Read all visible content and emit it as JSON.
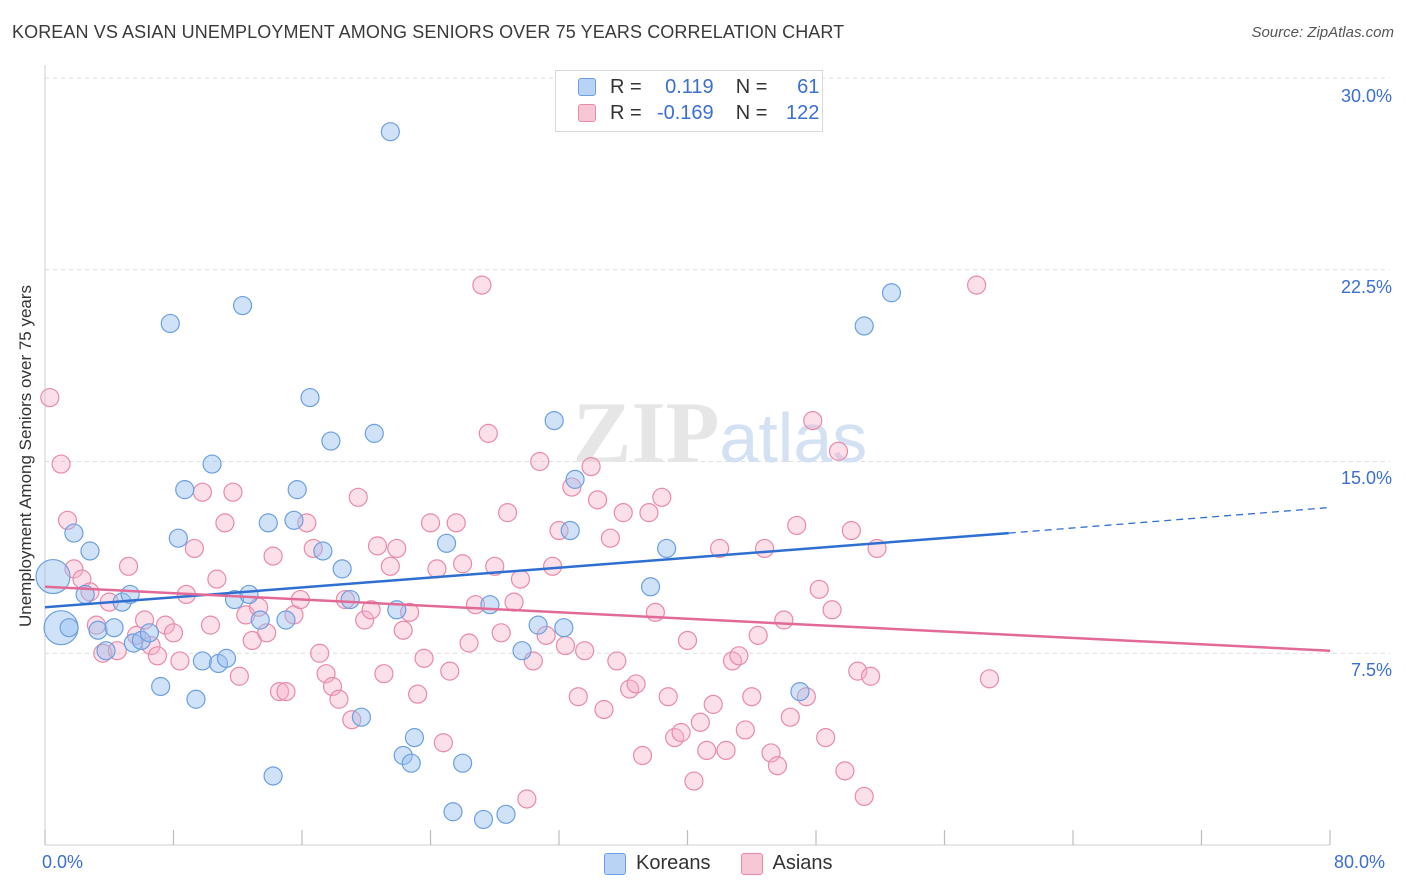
{
  "header": {
    "title": "KOREAN VS ASIAN UNEMPLOYMENT AMONG SENIORS OVER 75 YEARS CORRELATION CHART",
    "source": "Source: ZipAtlas.com"
  },
  "legend_box": {
    "rows": [
      {
        "r_label": "R =",
        "r_value": "0.119",
        "n_label": "N =",
        "n_value": "61",
        "color": "#6d9fe0"
      },
      {
        "r_label": "R =",
        "r_value": "-0.169",
        "n_label": "N =",
        "n_value": "122",
        "color": "#e98aab"
      }
    ]
  },
  "bottom_legend": {
    "koreans": "Koreans",
    "asians": "Asians"
  },
  "colors": {
    "koreans": "#6d9fe0",
    "asians": "#e98aab",
    "koreans_line": "#2f6fd0",
    "asians_line": "#e26a97",
    "tick_text": "#3b6fd1"
  },
  "chart_data": {
    "type": "scatter",
    "title": "KOREAN VS ASIAN UNEMPLOYMENT AMONG SENIORS OVER 75 YEARS CORRELATION CHART",
    "xlabel": "",
    "ylabel": "Unemployment Among Seniors over 75 years",
    "xlim": [
      0,
      80
    ],
    "ylim": [
      0,
      30
    ],
    "x_tick_labels": [
      "0.0%",
      "80.0%"
    ],
    "y_ticks": [
      7.5,
      15.0,
      22.5,
      30.0
    ],
    "y_tick_labels": [
      "7.5%",
      "15.0%",
      "22.5%",
      "30.0%"
    ],
    "grid": true,
    "watermark": "ZIPatlas",
    "series": [
      {
        "name": "Koreans",
        "r": 0.119,
        "n": 61,
        "trend": {
          "x0": 0,
          "y0": 9.3,
          "x1": 60,
          "y1": 12.2,
          "dashed_to_x": 80,
          "dashed_to_y": 13.2
        },
        "points": [
          [
            0.5,
            10.5,
            2
          ],
          [
            1.0,
            8.5,
            2
          ],
          [
            1.5,
            8.5,
            1
          ],
          [
            1.8,
            12.2,
            1
          ],
          [
            2.5,
            9.8,
            1
          ],
          [
            2.8,
            11.5,
            1
          ],
          [
            3.3,
            8.4,
            1
          ],
          [
            3.8,
            7.6,
            1
          ],
          [
            4.3,
            8.5,
            1
          ],
          [
            4.8,
            9.5,
            1
          ],
          [
            5.3,
            9.8,
            1
          ],
          [
            5.5,
            7.9,
            1
          ],
          [
            6.0,
            8.0,
            1
          ],
          [
            6.5,
            8.3,
            1
          ],
          [
            7.2,
            6.2,
            1
          ],
          [
            7.8,
            20.4,
            1
          ],
          [
            8.3,
            12.0,
            1
          ],
          [
            8.7,
            13.9,
            1
          ],
          [
            9.4,
            5.7,
            1
          ],
          [
            9.8,
            7.2,
            1
          ],
          [
            10.4,
            14.9,
            1
          ],
          [
            10.8,
            7.1,
            1
          ],
          [
            11.3,
            7.3,
            1
          ],
          [
            11.8,
            9.6,
            1
          ],
          [
            12.3,
            21.1,
            1
          ],
          [
            12.7,
            9.8,
            1
          ],
          [
            13.4,
            8.8,
            1
          ],
          [
            13.9,
            12.6,
            1
          ],
          [
            14.2,
            2.7,
            1
          ],
          [
            15.0,
            8.8,
            1
          ],
          [
            15.5,
            12.7,
            1
          ],
          [
            15.7,
            13.9,
            1
          ],
          [
            16.5,
            17.5,
            1
          ],
          [
            17.3,
            11.5,
            1
          ],
          [
            17.8,
            15.8,
            1
          ],
          [
            18.5,
            10.8,
            1
          ],
          [
            19.0,
            9.6,
            1
          ],
          [
            19.7,
            5.0,
            1
          ],
          [
            20.5,
            16.1,
            1
          ],
          [
            21.5,
            27.9,
            1
          ],
          [
            21.9,
            9.2,
            1
          ],
          [
            22.3,
            3.5,
            1
          ],
          [
            22.8,
            3.2,
            1
          ],
          [
            23.0,
            4.2,
            1
          ],
          [
            25.0,
            11.8,
            1
          ],
          [
            25.4,
            1.3,
            1
          ],
          [
            26.0,
            3.2,
            1
          ],
          [
            27.3,
            1.0,
            1
          ],
          [
            27.7,
            9.4,
            1
          ],
          [
            28.7,
            1.2,
            1
          ],
          [
            29.7,
            7.6,
            1
          ],
          [
            30.7,
            8.6,
            1
          ],
          [
            31.7,
            16.6,
            1
          ],
          [
            32.3,
            8.5,
            1
          ],
          [
            32.7,
            12.3,
            1
          ],
          [
            33.0,
            14.3,
            1
          ],
          [
            37.7,
            10.1,
            1
          ],
          [
            38.7,
            11.6,
            1
          ],
          [
            47.0,
            6.0,
            1
          ],
          [
            51.0,
            20.3,
            1
          ],
          [
            52.7,
            21.6,
            1
          ]
        ]
      },
      {
        "name": "Asians",
        "r": -0.169,
        "n": 122,
        "trend": {
          "x0": 0,
          "y0": 10.1,
          "x1": 80,
          "y1": 7.6
        },
        "points": [
          [
            0.3,
            17.5,
            1
          ],
          [
            1.0,
            14.9,
            1
          ],
          [
            1.4,
            12.7,
            1
          ],
          [
            1.8,
            10.8,
            1
          ],
          [
            2.3,
            10.4,
            1
          ],
          [
            2.8,
            9.9,
            1
          ],
          [
            3.2,
            8.6,
            1
          ],
          [
            3.6,
            7.5,
            1
          ],
          [
            4.0,
            9.5,
            1
          ],
          [
            4.5,
            7.6,
            1
          ],
          [
            5.2,
            10.9,
            1
          ],
          [
            5.7,
            8.2,
            1
          ],
          [
            6.2,
            8.8,
            1
          ],
          [
            6.6,
            7.8,
            1
          ],
          [
            7.0,
            7.4,
            1
          ],
          [
            7.5,
            8.6,
            1
          ],
          [
            8.0,
            8.3,
            1
          ],
          [
            8.4,
            7.2,
            1
          ],
          [
            8.8,
            9.8,
            1
          ],
          [
            9.3,
            11.6,
            1
          ],
          [
            9.8,
            13.8,
            1
          ],
          [
            10.3,
            8.6,
            1
          ],
          [
            10.7,
            10.4,
            1
          ],
          [
            11.2,
            12.6,
            1
          ],
          [
            11.7,
            13.8,
            1
          ],
          [
            12.1,
            6.6,
            1
          ],
          [
            12.5,
            9.0,
            1
          ],
          [
            12.9,
            8.0,
            1
          ],
          [
            13.3,
            9.3,
            1
          ],
          [
            13.8,
            8.3,
            1
          ],
          [
            14.2,
            11.3,
            1
          ],
          [
            14.6,
            6.0,
            1
          ],
          [
            15.0,
            6.0,
            1
          ],
          [
            15.5,
            9.0,
            1
          ],
          [
            15.9,
            9.6,
            1
          ],
          [
            16.3,
            12.6,
            1
          ],
          [
            16.7,
            11.6,
            1
          ],
          [
            17.1,
            7.5,
            1
          ],
          [
            17.5,
            6.7,
            1
          ],
          [
            17.9,
            6.2,
            1
          ],
          [
            18.3,
            5.7,
            1
          ],
          [
            18.7,
            9.6,
            1
          ],
          [
            19.1,
            4.9,
            1
          ],
          [
            19.5,
            13.6,
            1
          ],
          [
            19.9,
            8.8,
            1
          ],
          [
            20.3,
            9.2,
            1
          ],
          [
            20.7,
            11.7,
            1
          ],
          [
            21.1,
            6.7,
            1
          ],
          [
            21.5,
            10.9,
            1
          ],
          [
            21.9,
            11.6,
            1
          ],
          [
            22.3,
            8.4,
            1
          ],
          [
            22.7,
            9.1,
            1
          ],
          [
            23.2,
            5.9,
            1
          ],
          [
            23.6,
            7.3,
            1
          ],
          [
            24.0,
            12.6,
            1
          ],
          [
            24.4,
            10.8,
            1
          ],
          [
            24.8,
            4.0,
            1
          ],
          [
            25.2,
            6.8,
            1
          ],
          [
            25.6,
            12.6,
            1
          ],
          [
            26.0,
            11.0,
            1
          ],
          [
            26.4,
            7.9,
            1
          ],
          [
            26.8,
            9.4,
            1
          ],
          [
            27.2,
            21.9,
            1
          ],
          [
            27.6,
            16.1,
            1
          ],
          [
            28.0,
            10.9,
            1
          ],
          [
            28.4,
            8.3,
            1
          ],
          [
            28.8,
            13.0,
            1
          ],
          [
            29.2,
            9.5,
            1
          ],
          [
            29.6,
            10.4,
            1
          ],
          [
            30.0,
            1.8,
            1
          ],
          [
            30.4,
            7.2,
            1
          ],
          [
            30.8,
            15.0,
            1
          ],
          [
            31.2,
            8.2,
            1
          ],
          [
            31.6,
            10.9,
            1
          ],
          [
            32.0,
            12.3,
            1
          ],
          [
            32.4,
            7.8,
            1
          ],
          [
            32.8,
            14.0,
            1
          ],
          [
            33.2,
            5.8,
            1
          ],
          [
            33.6,
            7.6,
            1
          ],
          [
            34.0,
            14.8,
            1
          ],
          [
            34.4,
            13.5,
            1
          ],
          [
            34.8,
            5.3,
            1
          ],
          [
            35.2,
            12.0,
            1
          ],
          [
            35.6,
            7.2,
            1
          ],
          [
            36.0,
            13.0,
            1
          ],
          [
            36.4,
            6.1,
            1
          ],
          [
            36.8,
            6.3,
            1
          ],
          [
            37.2,
            3.5,
            1
          ],
          [
            37.6,
            13.0,
            1
          ],
          [
            38.0,
            9.1,
            1
          ],
          [
            38.4,
            13.6,
            1
          ],
          [
            38.8,
            5.8,
            1
          ],
          [
            39.2,
            4.2,
            1
          ],
          [
            39.6,
            4.4,
            1
          ],
          [
            40.0,
            8.0,
            1
          ],
          [
            40.4,
            2.5,
            1
          ],
          [
            40.8,
            4.8,
            1
          ],
          [
            41.2,
            3.7,
            1
          ],
          [
            41.6,
            5.5,
            1
          ],
          [
            42.0,
            11.6,
            1
          ],
          [
            42.4,
            3.7,
            1
          ],
          [
            42.8,
            7.2,
            1
          ],
          [
            43.2,
            7.4,
            1
          ],
          [
            43.6,
            4.5,
            1
          ],
          [
            44.0,
            5.8,
            1
          ],
          [
            44.4,
            8.2,
            1
          ],
          [
            44.8,
            11.6,
            1
          ],
          [
            45.2,
            3.6,
            1
          ],
          [
            45.6,
            3.1,
            1
          ],
          [
            46.0,
            8.8,
            1
          ],
          [
            46.4,
            5.0,
            1
          ],
          [
            46.8,
            12.5,
            1
          ],
          [
            47.4,
            5.8,
            1
          ],
          [
            47.8,
            16.6,
            1
          ],
          [
            48.2,
            10.0,
            1
          ],
          [
            48.6,
            4.2,
            1
          ],
          [
            49.0,
            9.2,
            1
          ],
          [
            49.4,
            15.4,
            1
          ],
          [
            49.8,
            2.9,
            1
          ],
          [
            50.2,
            12.3,
            1
          ],
          [
            50.6,
            6.8,
            1
          ],
          [
            51.0,
            1.9,
            1
          ],
          [
            51.4,
            6.6,
            1
          ],
          [
            51.8,
            11.6,
            1
          ],
          [
            58.0,
            21.9,
            1
          ],
          [
            58.8,
            6.5,
            1
          ]
        ]
      }
    ]
  }
}
